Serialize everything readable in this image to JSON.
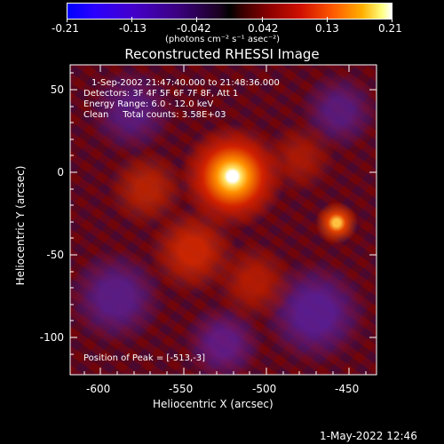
{
  "colorbar": {
    "ticks": [
      "-0.21",
      "-0.13",
      "-0.042",
      "0.042",
      "0.13",
      "0.21"
    ],
    "units": "(photons cm⁻² s⁻¹ asec⁻²)"
  },
  "plot": {
    "title": "Reconstructed RHESSI Image",
    "x_label": "Heliocentric X (arcsec)",
    "y_label": "Heliocentric Y (arcsec)",
    "x_ticks": [
      "-600",
      "-550",
      "-500",
      "-450"
    ],
    "y_ticks": [
      "50",
      "0",
      "-50",
      "-100"
    ],
    "info": [
      "1-Sep-2002 21:47:40.000 to 21:48:36.000",
      "Detectors: 3F 4F 5F 6F 7F 8F, Att 1",
      "Energy Range: 6.0 - 12.0 keV",
      "Clean     Total counts: 3.58E+03"
    ],
    "peak_text": "Position of Peak = [-513,-3]"
  },
  "footer": {
    "timestamp": "1-May-2022 12:46"
  }
}
